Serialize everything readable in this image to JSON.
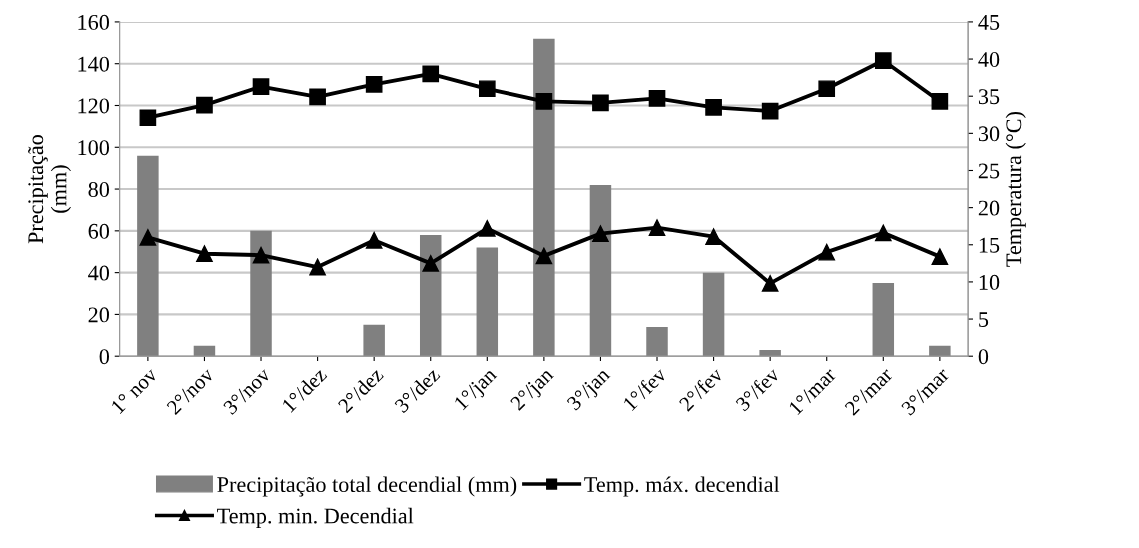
{
  "chart_data": {
    "type": "bar",
    "ylabel": "Precipitação\n(mm)",
    "y2label": "Temperatura (°C)",
    "categories": [
      "1° nov",
      "2°/nov",
      "3°/nov",
      "1°/dez",
      "2°/dez",
      "3°/dez",
      "1°/jan",
      "2°/jan",
      "3°/jan",
      "1°/fev",
      "2°/fev",
      "3°/fev",
      "1°/mar",
      "2°/mar",
      "3°/mar"
    ],
    "series": [
      {
        "name": "Precipitação total decendial (mm)",
        "color": "#808080",
        "values": [
          96,
          5,
          60,
          0,
          15,
          58,
          52,
          152,
          82,
          14,
          40,
          3,
          0,
          35,
          5
        ]
      },
      {
        "name": "Temp. máx. decendial",
        "type": "line",
        "axis": "y2",
        "color": "#000000",
        "marker": "square",
        "values": [
          32.1,
          33.8,
          36.3,
          34.9,
          36.6,
          38.0,
          36.0,
          34.3,
          34.1,
          34.7,
          33.5,
          33.0,
          36.0,
          39.8,
          34.3
        ]
      },
      {
        "name": "Temp. min. Decendial",
        "type": "line",
        "axis": "y2",
        "color": "#000000",
        "marker": "triangle",
        "values": [
          16.0,
          13.8,
          13.6,
          12.0,
          15.6,
          12.5,
          17.2,
          13.5,
          16.5,
          17.3,
          16.1,
          9.8,
          14.0,
          16.6,
          13.4
        ]
      }
    ],
    "ylim": [
      0,
      160
    ],
    "yticks": [
      0,
      20,
      40,
      60,
      80,
      100,
      120,
      140,
      160
    ],
    "y2lim": [
      0,
      45
    ],
    "y2ticks": [
      0,
      5,
      10,
      15,
      20,
      25,
      30,
      35,
      40,
      45
    ],
    "grid": "y",
    "legend": "bottom"
  }
}
